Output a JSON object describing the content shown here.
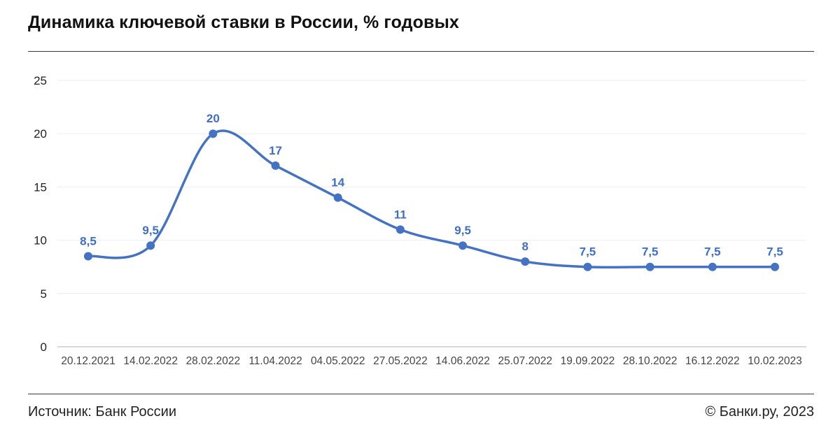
{
  "header": {
    "title": "Динамика ключевой ставки в России, % годовых"
  },
  "footer": {
    "source": "Источник: Банк России",
    "copyright": "© Банки.ру, 2023"
  },
  "colors": {
    "line": "#4472c4",
    "label": "#3f6fc4",
    "grid": "#eeeeee",
    "axis": "#cccccc"
  },
  "chart_data": {
    "type": "line",
    "title": "Динамика ключевой ставки в России, % годовых",
    "xlabel": "",
    "ylabel": "",
    "ylim": [
      0,
      25
    ],
    "yticks": [
      "0",
      "5",
      "10",
      "15",
      "20",
      "25"
    ],
    "grid": true,
    "categories": [
      "20.12.2021",
      "14.02.2022",
      "28.02.2022",
      "11.04.2022",
      "04.05.2022",
      "27.05.2022",
      "14.06.2022",
      "25.07.2022",
      "19.09.2022",
      "28.10.2022",
      "16.12.2022",
      "10.02.2023"
    ],
    "values": [
      8.5,
      9.5,
      20,
      17,
      14,
      11,
      9.5,
      8,
      7.5,
      7.5,
      7.5,
      7.5
    ],
    "labels": [
      "8,5",
      "9,5",
      "20",
      "17",
      "14",
      "11",
      "9,5",
      "8",
      "7,5",
      "7,5",
      "7,5",
      "7,5"
    ]
  }
}
